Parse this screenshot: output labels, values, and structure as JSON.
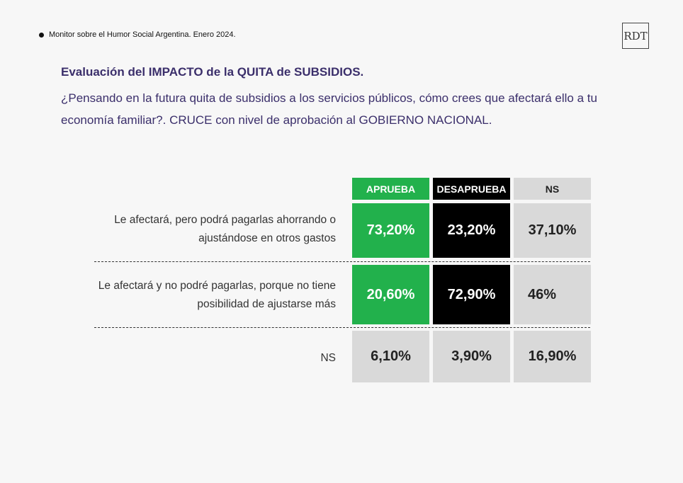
{
  "source": "Monitor sobre el Humor Social Argentina. Enero 2024.",
  "logo_text": "RDT",
  "title": "Evaluación del IMPACTO de la QUITA de SUBSIDIOS.",
  "question": "¿Pensando en la futura quita de subsidios a los servicios públicos, cómo crees que afectará ello a tu economía familiar?. CRUCE con nivel de aprobación al GOBIERNO NACIONAL.",
  "colors": {
    "aprueba": "#22b14c",
    "desaprueba": "#000000",
    "ns": "#d9d9d9",
    "text_purple": "#3b2f6b"
  },
  "chart_data": {
    "type": "table",
    "columns": [
      "APRUEBA",
      "DESAPRUEBA",
      "NS"
    ],
    "rows": [
      {
        "label": "Le afectará, pero podrá pagarlas ahorrando o ajustándose en otros gastos",
        "values": [
          "73,20%",
          "23,20%",
          "37,10%"
        ]
      },
      {
        "label": "Le afectará y no podré pagarlas, porque no tiene posibilidad de ajustarse más",
        "values": [
          "20,60%",
          "72,90%",
          "46%"
        ]
      },
      {
        "label": "NS",
        "values": [
          "6,10%",
          "3,90%",
          "16,90%"
        ]
      }
    ]
  }
}
